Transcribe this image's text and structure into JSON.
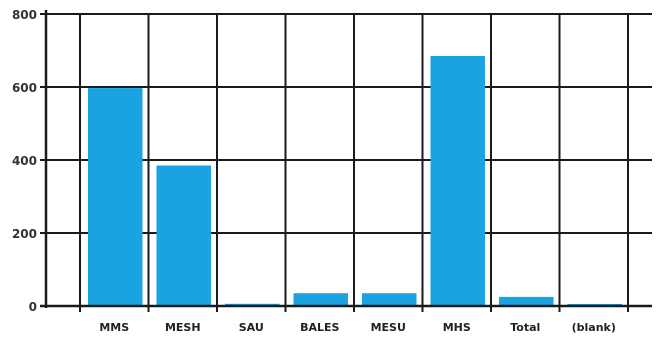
{
  "chart_data": {
    "type": "bar",
    "categories": [
      "MMS",
      "MESH",
      "SAU",
      "BALES",
      "MESU",
      "MHS",
      "Total",
      "(blank)"
    ],
    "values": [
      597,
      385,
      6,
      35,
      35,
      685,
      25,
      3
    ],
    "ylim": [
      0,
      800
    ],
    "yticks": [
      0,
      200,
      400,
      600,
      800
    ],
    "grid": true,
    "bar_color": "#1aa3e0",
    "grid_color": "#1a1a1a",
    "tick_label_color": "#333333",
    "legend": "none"
  }
}
